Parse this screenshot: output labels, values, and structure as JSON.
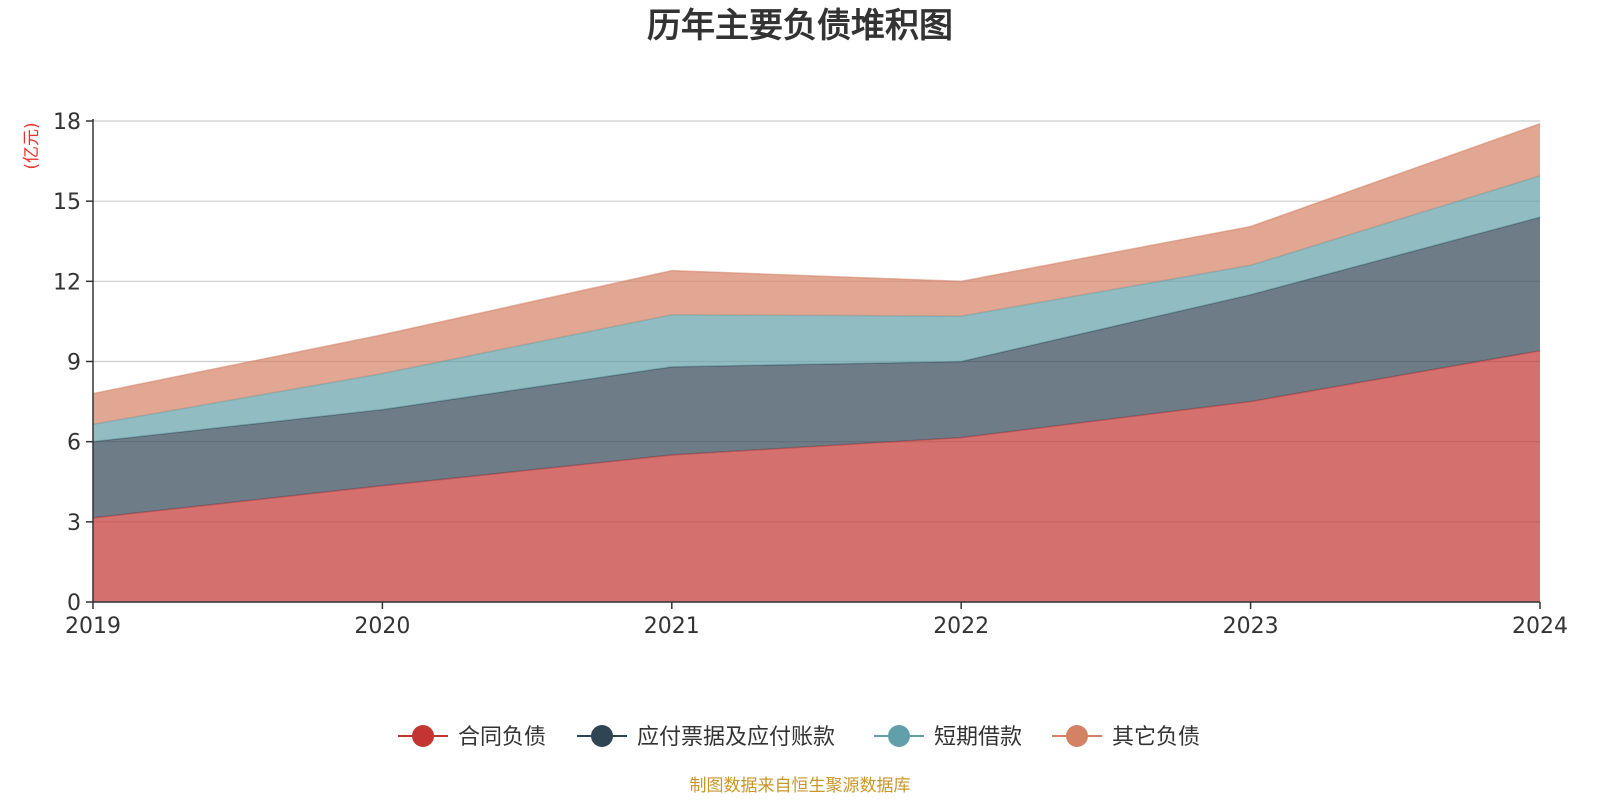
{
  "chart_data": {
    "type": "area",
    "stacked": true,
    "title": "历年主要负债堆积图",
    "unit_label": "(亿元)",
    "x": [
      "2019",
      "2020",
      "2021",
      "2022",
      "2023",
      "2024"
    ],
    "ylim": [
      0,
      18
    ],
    "yticks": [
      0,
      3,
      6,
      9,
      12,
      15,
      18
    ],
    "grid": true,
    "legend_position": "bottom",
    "series": [
      {
        "name": "合同负债",
        "color": "#c23531",
        "values": [
          3.15,
          4.35,
          5.5,
          6.15,
          7.5,
          9.4
        ]
      },
      {
        "name": "应付票据及应付账款",
        "color": "#2f4554",
        "values": [
          2.85,
          2.85,
          3.3,
          2.85,
          4.0,
          5.0
        ]
      },
      {
        "name": "短期借款",
        "color": "#61a0a8",
        "values": [
          0.65,
          1.35,
          1.95,
          1.7,
          1.1,
          1.55
        ]
      },
      {
        "name": "其它负债",
        "color": "#d48265",
        "values": [
          1.15,
          1.45,
          1.65,
          1.3,
          1.45,
          1.95
        ]
      }
    ],
    "source": "制图数据来自恒生聚源数据库"
  }
}
